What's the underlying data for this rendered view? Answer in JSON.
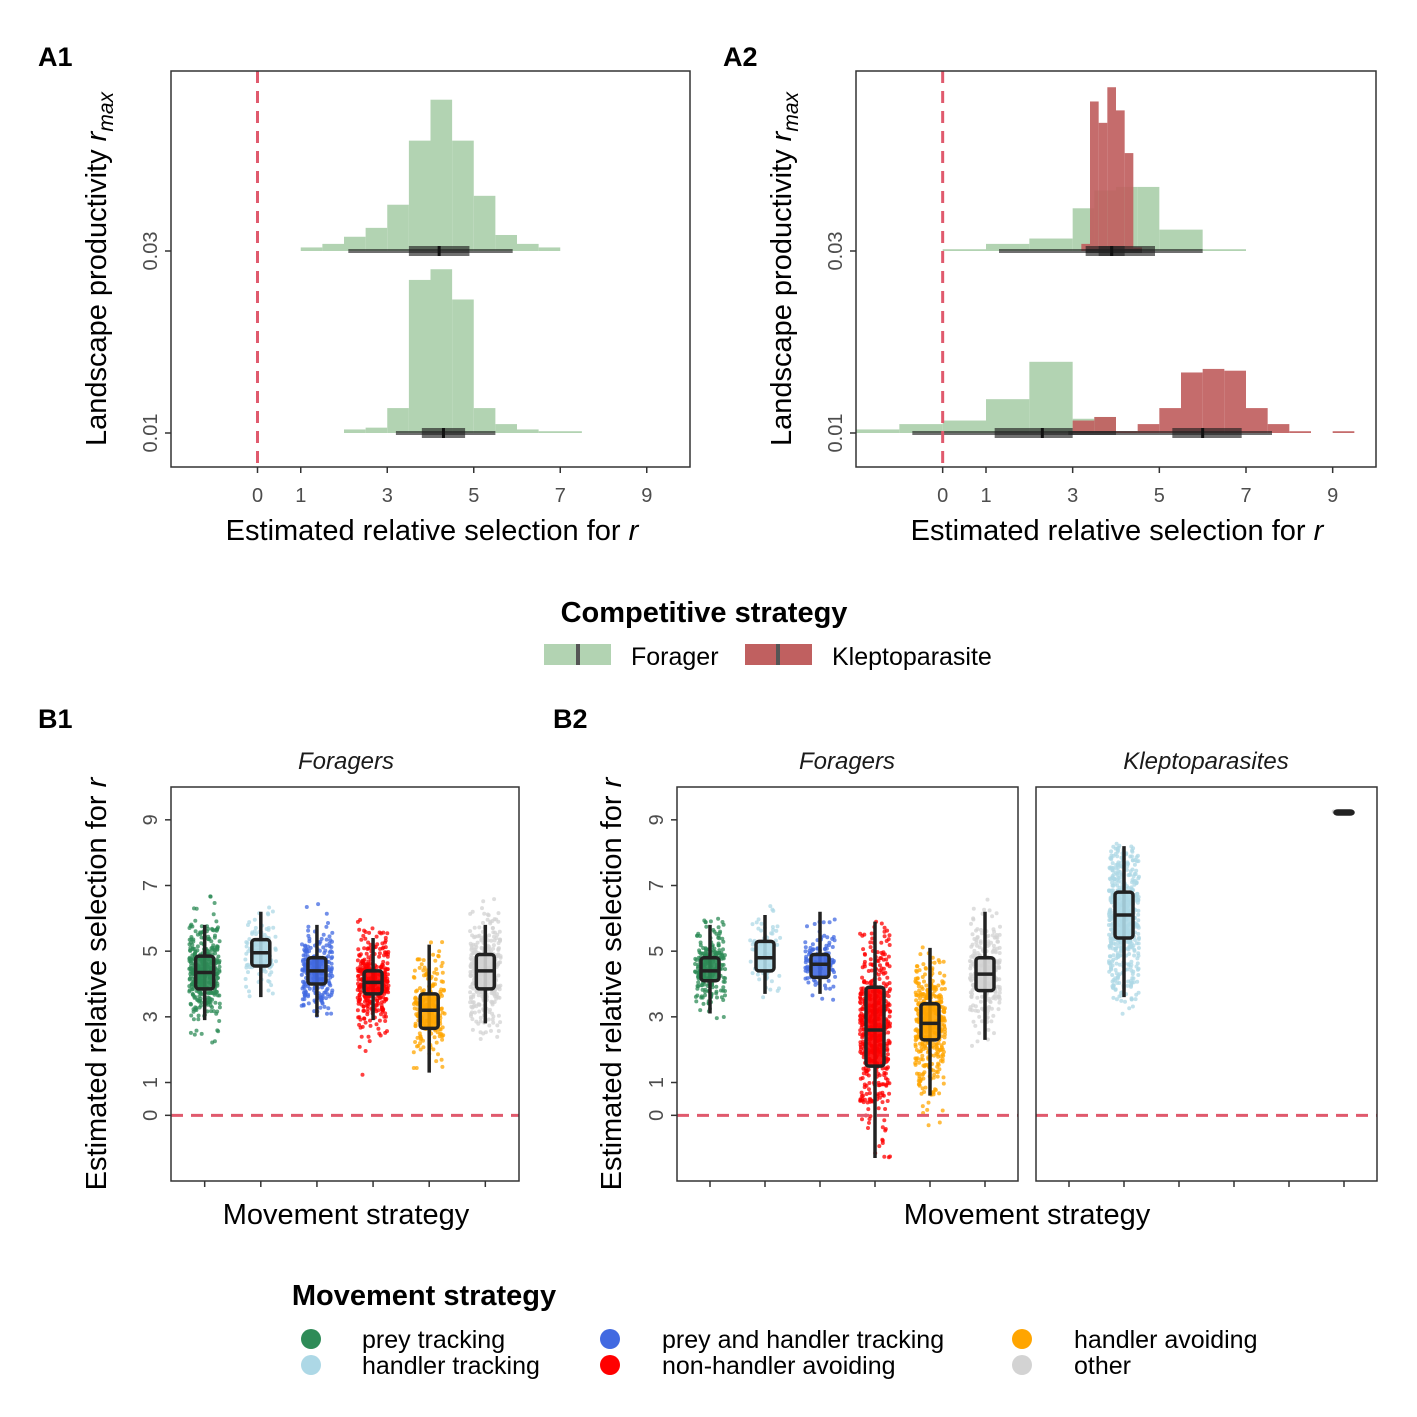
{
  "panels": {
    "a1": "A1",
    "a2": "A2",
    "b1": "B1",
    "b2": "B2"
  },
  "axes_a": {
    "xlabel_prefix": "Estimated relative selection for",
    "xlabel_var": "r",
    "ylabel_prefix": "Landscape productivity",
    "ylabel_var": "r",
    "ylabel_sub": "max",
    "x_ticks": [
      "0",
      "1",
      "3",
      "5",
      "7",
      "9"
    ],
    "y_ticks": [
      "0.03",
      "0.01"
    ]
  },
  "axes_b": {
    "xlabel": "Movement strategy",
    "ylabel_prefix": "Estimated relative selection for",
    "ylabel_var": "r",
    "y_ticks": [
      "9",
      "7",
      "5",
      "3",
      "1",
      "0"
    ]
  },
  "strips": {
    "b1": "Foragers",
    "b2_left": "Foragers",
    "b2_right": "Kleptoparasites"
  },
  "legend_competitive": {
    "title": "Competitive strategy",
    "items": [
      {
        "label": "Forager",
        "color": "#b2d3b2"
      },
      {
        "label": "Kleptoparasite",
        "color": "#c06060"
      }
    ]
  },
  "legend_movement": {
    "title": "Movement strategy",
    "items": [
      {
        "label": "prey tracking",
        "color": "#2e8b57"
      },
      {
        "label": "handler tracking",
        "color": "#add8e6"
      },
      {
        "label": "prey and handler tracking",
        "color": "#4169e1"
      },
      {
        "label": "non-handler avoiding",
        "color": "#ff0000"
      },
      {
        "label": "handler avoiding",
        "color": "#ffa500"
      },
      {
        "label": "other",
        "color": "#d3d3d3"
      }
    ]
  },
  "chart_data": [
    {
      "type": "histogram",
      "panel": "A1",
      "x_range": [
        -2,
        10
      ],
      "reference_line_x": 0,
      "rows": [
        {
          "y": "0.03",
          "series": [
            {
              "name": "Forager",
              "color": "#b2d3b2",
              "bins": [
                [
                  1,
                  1.5,
                  0.02
                ],
                [
                  1.5,
                  2,
                  0.04
                ],
                [
                  2,
                  2.5,
                  0.08
                ],
                [
                  2.5,
                  3,
                  0.13
                ],
                [
                  3,
                  3.5,
                  0.26
                ],
                [
                  3.5,
                  4,
                  0.62
                ],
                [
                  4,
                  4.5,
                  0.85
                ],
                [
                  4.5,
                  5,
                  0.62
                ],
                [
                  5,
                  5.5,
                  0.31
                ],
                [
                  5.5,
                  6,
                  0.09
                ],
                [
                  6,
                  6.5,
                  0.04
                ],
                [
                  6.5,
                  7,
                  0.02
                ]
              ],
              "interval": {
                "outer": [
                  2.1,
                  5.9
                ],
                "inner": [
                  3.5,
                  4.9
                ],
                "median": 4.2
              }
            }
          ]
        },
        {
          "y": "0.01",
          "series": [
            {
              "name": "Forager",
              "color": "#b2d3b2",
              "bins": [
                [
                  2,
                  2.5,
                  0.02
                ],
                [
                  2.5,
                  3,
                  0.03
                ],
                [
                  3,
                  3.5,
                  0.14
                ],
                [
                  3.5,
                  4,
                  0.86
                ],
                [
                  4,
                  4.5,
                  0.92
                ],
                [
                  4.5,
                  5,
                  0.75
                ],
                [
                  5,
                  5.5,
                  0.14
                ],
                [
                  5.5,
                  6,
                  0.05
                ],
                [
                  6,
                  6.5,
                  0.02
                ],
                [
                  6.5,
                  7.5,
                  0.01
                ]
              ],
              "interval": {
                "outer": [
                  3.2,
                  5.5
                ],
                "inner": [
                  3.8,
                  4.8
                ],
                "median": 4.3
              }
            }
          ]
        }
      ]
    },
    {
      "type": "histogram",
      "panel": "A2",
      "x_range": [
        -2,
        10
      ],
      "reference_line_x": 0,
      "rows": [
        {
          "y": "0.03",
          "series": [
            {
              "name": "Forager",
              "color": "#b2d3b2",
              "bins": [
                [
                  0,
                  1,
                  0.01
                ],
                [
                  1,
                  2,
                  0.04
                ],
                [
                  2,
                  3,
                  0.07
                ],
                [
                  3,
                  3.5,
                  0.24
                ],
                [
                  3.5,
                  4,
                  0.34
                ],
                [
                  4,
                  4.5,
                  0.36
                ],
                [
                  4.5,
                  5,
                  0.36
                ],
                [
                  5,
                  6,
                  0.12
                ],
                [
                  6,
                  7,
                  0.01
                ]
              ],
              "interval": {
                "outer": [
                  1.3,
                  6.0
                ],
                "inner": [
                  3.3,
                  4.9
                ],
                "median": 3.9
              }
            },
            {
              "name": "Kleptoparasite",
              "color": "#c06060",
              "bins": [
                [
                  3.2,
                  3.4,
                  0.04
                ],
                [
                  3.4,
                  3.6,
                  0.84
                ],
                [
                  3.6,
                  3.8,
                  0.72
                ],
                [
                  3.8,
                  4.0,
                  0.92
                ],
                [
                  4.0,
                  4.2,
                  0.79
                ],
                [
                  4.2,
                  4.4,
                  0.55
                ],
                [
                  4.4,
                  4.6,
                  0.02
                ]
              ],
              "interval": {
                "outer": [
                  3.3,
                  4.6
                ],
                "inner": [
                  3.6,
                  4.2
                ],
                "median": 3.9
              }
            }
          ]
        },
        {
          "y": "0.01",
          "series": [
            {
              "name": "Forager",
              "color": "#b2d3b2",
              "bins": [
                [
                  -2,
                  -1,
                  0.02
                ],
                [
                  -1,
                  0,
                  0.05
                ],
                [
                  0,
                  1,
                  0.07
                ],
                [
                  1,
                  2,
                  0.19
                ],
                [
                  2,
                  3,
                  0.4
                ],
                [
                  3,
                  3.5,
                  0.08
                ],
                [
                  3.5,
                  4,
                  0.09
                ],
                [
                  4,
                  4.5,
                  0.01
                ]
              ],
              "interval": {
                "outer": [
                  -0.7,
                  4.0
                ],
                "inner": [
                  1.2,
                  3.0
                ],
                "median": 2.3
              }
            },
            {
              "name": "Kleptoparasite",
              "color": "#c06060",
              "bins": [
                [
                  3,
                  3.5,
                  0.07
                ],
                [
                  3.5,
                  4,
                  0.09
                ],
                [
                  4,
                  4.5,
                  0.01
                ],
                [
                  4.5,
                  5,
                  0.05
                ],
                [
                  5,
                  5.5,
                  0.14
                ],
                [
                  5.5,
                  6,
                  0.34
                ],
                [
                  6,
                  6.5,
                  0.36
                ],
                [
                  6.5,
                  7,
                  0.35
                ],
                [
                  7,
                  7.5,
                  0.14
                ],
                [
                  7.5,
                  8,
                  0.05
                ],
                [
                  8,
                  8.5,
                  0.01
                ],
                [
                  9,
                  9.5,
                  0.01
                ]
              ],
              "interval": {
                "outer": [
                  2.9,
                  7.6
                ],
                "inner": [
                  5.3,
                  6.9
                ],
                "median": 6.0
              }
            }
          ]
        }
      ]
    },
    {
      "type": "box-jitter",
      "panel": "B1",
      "facet": "Foragers",
      "y_range": [
        -2,
        10
      ],
      "reference_line_y": 0,
      "groups": [
        {
          "name": "prey tracking",
          "color": "#2e8b57",
          "n": 380,
          "mean": 4.35,
          "sd": 0.75,
          "lo": 2.2,
          "hi": 7.4,
          "q1": 3.85,
          "median": 4.35,
          "q3": 4.85,
          "wmin": 2.9,
          "wmax": 5.8
        },
        {
          "name": "handler tracking",
          "color": "#add8e6",
          "n": 90,
          "mean": 4.9,
          "sd": 0.7,
          "lo": 3.5,
          "hi": 7.8,
          "q1": 4.55,
          "median": 4.95,
          "q3": 5.35,
          "wmin": 3.6,
          "wmax": 6.2
        },
        {
          "name": "prey and handler tracking",
          "color": "#4169e1",
          "n": 230,
          "mean": 4.4,
          "sd": 0.65,
          "lo": 3.0,
          "hi": 6.8,
          "q1": 4.0,
          "median": 4.4,
          "q3": 4.8,
          "wmin": 3.0,
          "wmax": 5.8
        },
        {
          "name": "non-handler avoiding",
          "color": "#ff0000",
          "n": 330,
          "mean": 4.05,
          "sd": 0.75,
          "lo": 0.8,
          "hi": 6.7,
          "q1": 3.7,
          "median": 4.05,
          "q3": 4.4,
          "wmin": 2.9,
          "wmax": 5.4
        },
        {
          "name": "handler avoiding",
          "color": "#ffa500",
          "n": 200,
          "mean": 3.2,
          "sd": 0.85,
          "lo": 1.2,
          "hi": 5.8,
          "q1": 2.65,
          "median": 3.2,
          "q3": 3.7,
          "wmin": 1.3,
          "wmax": 5.2
        },
        {
          "name": "other",
          "color": "#d3d3d3",
          "n": 330,
          "mean": 4.4,
          "sd": 0.85,
          "lo": 2.3,
          "hi": 6.8,
          "q1": 3.85,
          "median": 4.4,
          "q3": 4.9,
          "wmin": 2.8,
          "wmax": 5.8
        }
      ]
    },
    {
      "type": "box-jitter",
      "panel": "B2",
      "facet": "Foragers",
      "y_range": [
        -2,
        10
      ],
      "reference_line_y": 0,
      "groups": [
        {
          "name": "prey tracking",
          "color": "#2e8b57",
          "n": 220,
          "mean": 4.45,
          "sd": 0.65,
          "lo": 2.6,
          "hi": 7.3,
          "q1": 4.1,
          "median": 4.4,
          "q3": 4.8,
          "wmin": 3.1,
          "wmax": 5.8
        },
        {
          "name": "handler tracking",
          "color": "#add8e6",
          "n": 60,
          "mean": 4.8,
          "sd": 0.75,
          "lo": 1.4,
          "hi": 6.9,
          "q1": 4.4,
          "median": 4.8,
          "q3": 5.3,
          "wmin": 3.7,
          "wmax": 6.1
        },
        {
          "name": "prey and handler tracking",
          "color": "#4169e1",
          "n": 100,
          "mean": 4.6,
          "sd": 0.6,
          "lo": 3.5,
          "hi": 8.0,
          "q1": 4.2,
          "median": 4.6,
          "q3": 4.9,
          "wmin": 3.7,
          "wmax": 6.2
        },
        {
          "name": "non-handler avoiding",
          "color": "#ff0000",
          "n": 450,
          "mean": 2.6,
          "sd": 1.45,
          "lo": -1.3,
          "hi": 5.9,
          "q1": 1.5,
          "median": 2.6,
          "q3": 3.9,
          "wmin": -1.3,
          "wmax": 5.9
        },
        {
          "name": "handler avoiding",
          "color": "#ffa500",
          "n": 400,
          "mean": 2.8,
          "sd": 1.0,
          "lo": -0.8,
          "hi": 5.2,
          "q1": 2.3,
          "median": 2.8,
          "q3": 3.4,
          "wmin": 0.6,
          "wmax": 5.1
        },
        {
          "name": "other",
          "color": "#d3d3d3",
          "n": 220,
          "mean": 4.3,
          "sd": 0.9,
          "lo": 1.6,
          "hi": 7.7,
          "q1": 3.8,
          "median": 4.3,
          "q3": 4.8,
          "wmin": 2.3,
          "wmax": 6.2
        }
      ]
    },
    {
      "type": "box-jitter",
      "panel": "B2",
      "facet": "Kleptoparasites",
      "y_range": [
        -2,
        10
      ],
      "reference_line_y": 0,
      "groups": [
        {
          "name": "prey tracking",
          "color": "#2e8b57",
          "n": 0
        },
        {
          "name": "handler tracking",
          "color": "#add8e6",
          "n": 500,
          "mean": 6.0,
          "sd": 1.25,
          "lo": 2.6,
          "hi": 8.3,
          "q1": 5.4,
          "median": 6.1,
          "q3": 6.8,
          "wmin": 3.6,
          "wmax": 8.2
        },
        {
          "name": "prey and handler tracking",
          "color": "#4169e1",
          "n": 0
        },
        {
          "name": "non-handler avoiding",
          "color": "#ff0000",
          "n": 0
        },
        {
          "name": "handler avoiding",
          "color": "#ffa500",
          "n": 0
        },
        {
          "name": "other",
          "color": "#d3d3d3",
          "n": 4,
          "mean": 9.25,
          "sd": 0.0,
          "lo": 9.2,
          "hi": 9.3,
          "q1": 9.23,
          "median": 9.25,
          "q3": 9.27,
          "wmin": 9.2,
          "wmax": 9.3
        }
      ]
    }
  ]
}
